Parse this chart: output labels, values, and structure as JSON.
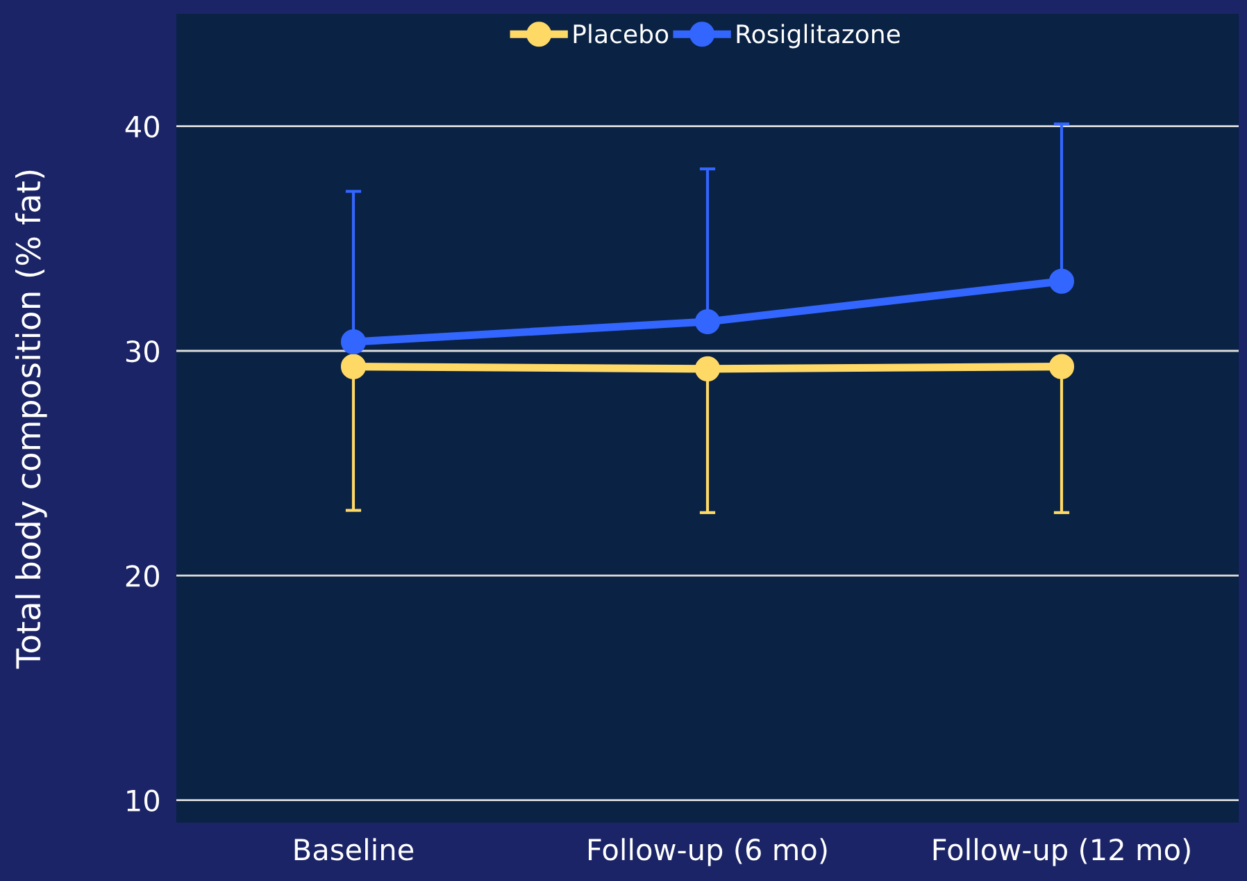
{
  "chart_data": {
    "type": "line",
    "ylabel": "Total body composition (% fat)",
    "categories": [
      "Baseline",
      "Follow-up (6 mo)",
      "Follow-up (12 mo)"
    ],
    "series": [
      {
        "name": "Placebo",
        "color": "#ffd966",
        "values": [
          29.3,
          29.2,
          29.3
        ],
        "errors": [
          [
            22.9,
            29.3
          ],
          [
            22.8,
            29.2
          ],
          [
            22.8,
            29.3
          ]
        ]
      },
      {
        "name": "Rosiglitazone",
        "color": "#3366ff",
        "values": [
          30.4,
          31.3,
          33.1
        ],
        "errors": [
          [
            30.4,
            37.1
          ],
          [
            31.3,
            38.1
          ],
          [
            33.1,
            40.1
          ]
        ]
      }
    ],
    "ylim": [
      9,
      45
    ],
    "yticks": [
      10,
      20,
      30,
      40
    ],
    "grid": "y",
    "legend": "top",
    "marker": "circle",
    "line_style": "solid"
  }
}
